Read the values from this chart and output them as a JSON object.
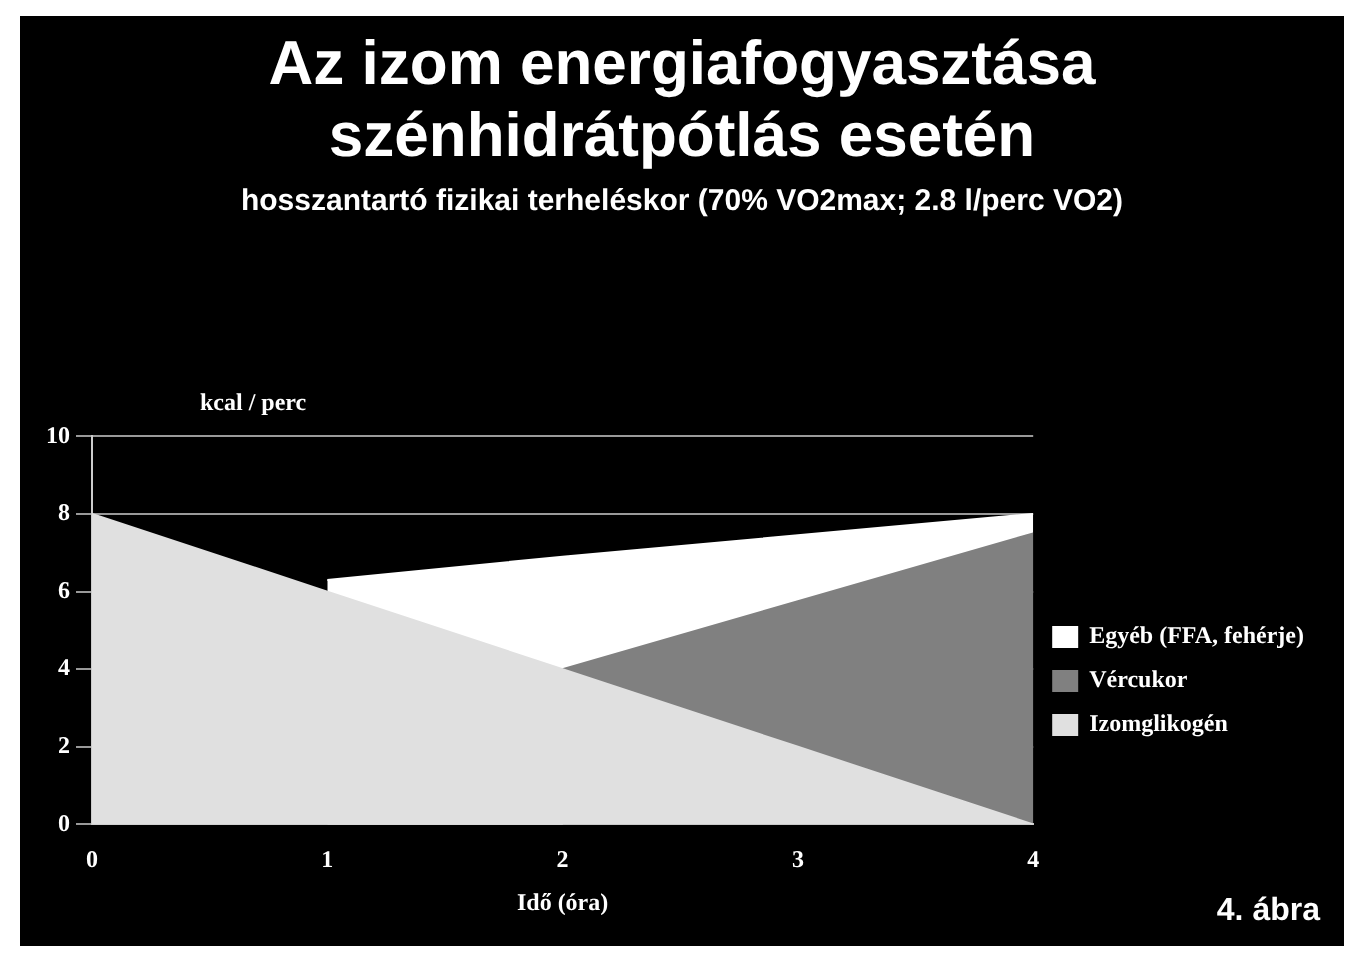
{
  "chart_data": {
    "type": "area",
    "title": "Az izom energiafogyasztása szénhidrátpótlás esetén",
    "subtitle": "hosszantartó fizikai terheléskor (70% VO2max; 2.8 l/perc VO2)",
    "xlabel": "Idő (óra)",
    "ylabel": "kcal / perc",
    "x": [
      0,
      1,
      2,
      3,
      4
    ],
    "stacked": true,
    "series": [
      {
        "name": "Izomglikogén",
        "color": "#e0e0e0",
        "values": [
          8,
          6,
          4,
          2,
          0
        ]
      },
      {
        "name": "Vércukor",
        "color": "#808080",
        "values": [
          null,
          null,
          0,
          3.75,
          7.5
        ]
      },
      {
        "name": "Egyéb (FFA, fehérje)",
        "color": "#ffffff",
        "values": [
          null,
          0.3,
          2.9,
          1.7,
          0.5
        ]
      }
    ],
    "xlim": [
      0,
      4
    ],
    "xticks": [
      0,
      1,
      2,
      3,
      4
    ],
    "ylim": [
      0,
      10
    ],
    "yticks": [
      0,
      2,
      4,
      6,
      8,
      10
    ],
    "grid": "y",
    "legend": "right",
    "annotations": [
      "4. ábra"
    ]
  }
}
